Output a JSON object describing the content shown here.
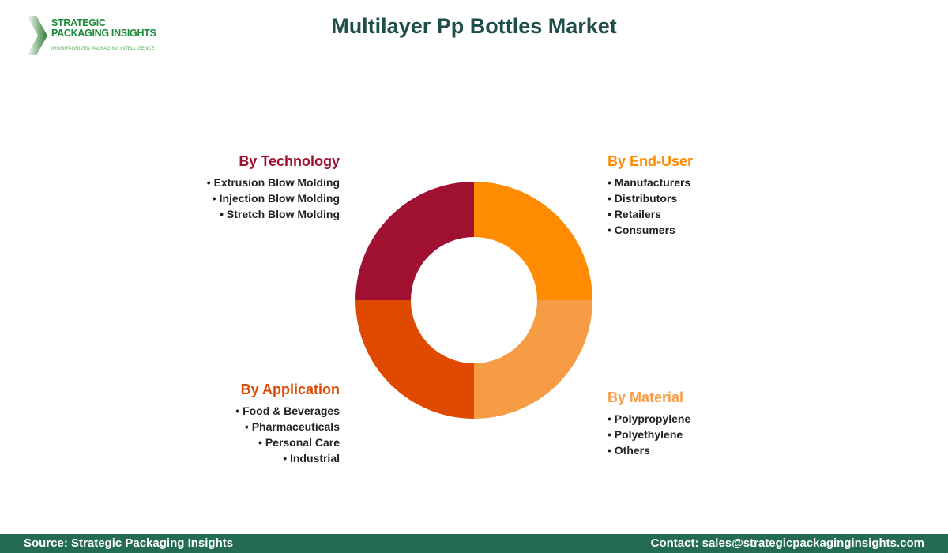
{
  "header": {
    "title": "Multilayer Pp Bottles Market"
  },
  "logo": {
    "line1": "STRATEGIC",
    "line2": "PACKAGING INSIGHTS",
    "tagline": "INSIGHT-DRIVEN PACKAGING INTELLIGENCE"
  },
  "segments": {
    "technology": {
      "title": "By Technology",
      "color": "#A01030",
      "items": [
        "Extrusion Blow Molding",
        "Injection Blow Molding",
        "Stretch Blow Molding"
      ]
    },
    "end_user": {
      "title": "By End-User",
      "color": "#FF8C00",
      "items": [
        "Manufacturers",
        "Distributors",
        "Retailers",
        "Consumers"
      ]
    },
    "application": {
      "title": "By Application",
      "color": "#E04A00",
      "items": [
        "Food & Beverages",
        "Pharmaceuticals",
        "Personal Care",
        "Industrial"
      ]
    },
    "material": {
      "title": "By Material",
      "color": "#F59C45",
      "items": [
        "Polypropylene",
        "Polyethylene",
        "Others"
      ]
    }
  },
  "footer": {
    "source": "Source: Strategic Packaging Insights",
    "contact": "Contact: sales@strategicpackaginginsights.com"
  }
}
